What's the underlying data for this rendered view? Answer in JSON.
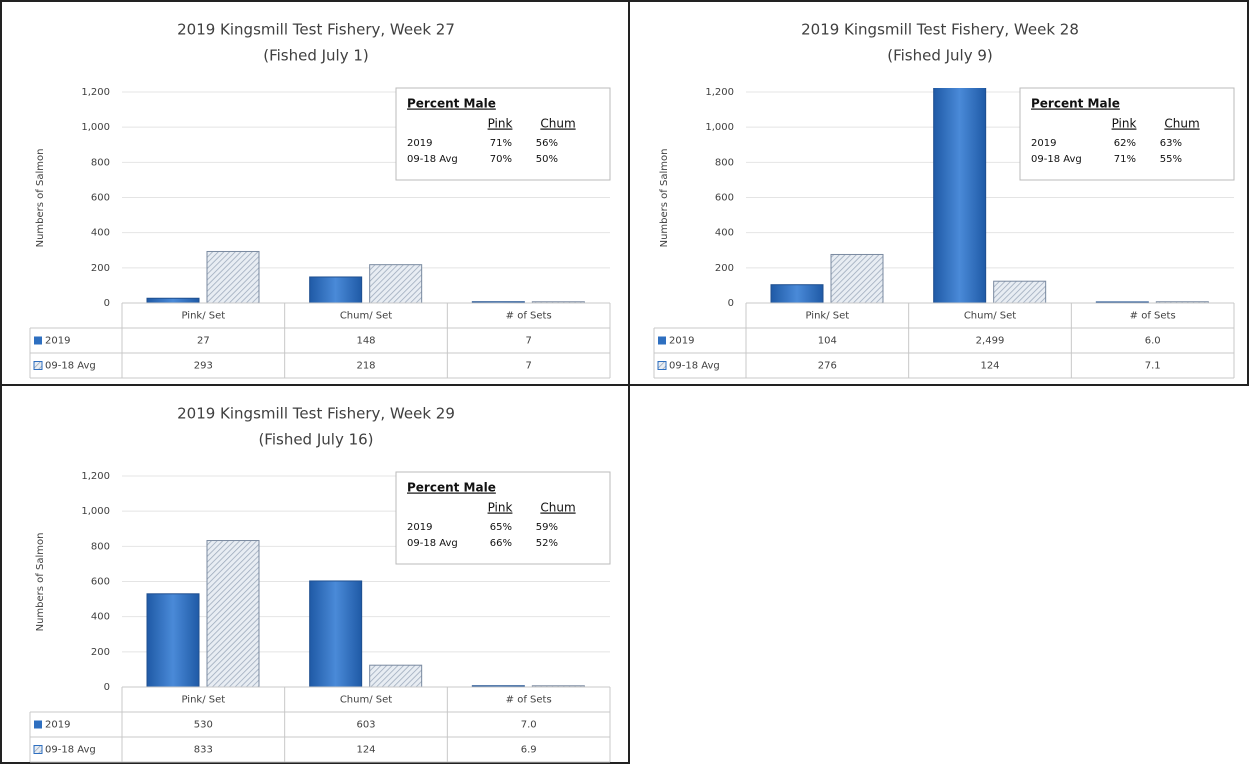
{
  "chart_data": [
    {
      "type": "bar",
      "title": "2019 Kingsmill Test Fishery, Week 27",
      "subtitle": "(Fished July 1)",
      "y_label": "Numbers of Salmon",
      "categories": [
        "Pink/ Set",
        "Chum/ Set",
        "# of Sets"
      ],
      "series": [
        {
          "name": "2019",
          "color": "#2e6fc0",
          "values": [
            27,
            148,
            7
          ]
        },
        {
          "name": "09-18 Avg",
          "color": "#c9d3e0",
          "values": [
            293,
            218,
            7
          ]
        }
      ],
      "ylim": [
        0,
        1200
      ],
      "yticks": [
        0,
        200,
        400,
        600,
        800,
        {
          "value": 1000,
          "label": "1,000"
        },
        {
          "value": 1200,
          "label": "1,200"
        }
      ],
      "grid": true,
      "inset": {
        "title": "Percent Male",
        "columns": [
          "Pink",
          "Chum"
        ],
        "rows": [
          {
            "label": "2019",
            "values": [
              "71%",
              "56%"
            ]
          },
          {
            "label": "09-18 Avg",
            "values": [
              "70%",
              "50%"
            ]
          }
        ]
      }
    },
    {
      "type": "bar",
      "title": "2019 Kingsmill Test Fishery, Week 28",
      "subtitle": "(Fished July 9)",
      "y_label": "Numbers of Salmon",
      "categories": [
        "Pink/ Set",
        "Chum/ Set",
        "# of Sets"
      ],
      "series": [
        {
          "name": "2019",
          "color": "#2e6fc0",
          "values": [
            104,
            2499,
            6.0
          ],
          "value_labels": [
            "104",
            "2,499",
            "6.0"
          ]
        },
        {
          "name": "09-18 Avg",
          "color": "#c9d3e0",
          "values": [
            276,
            124,
            7.1
          ]
        }
      ],
      "ylim": [
        0,
        1200
      ],
      "yticks": [
        0,
        200,
        400,
        600,
        800,
        {
          "value": 1000,
          "label": "1,000"
        },
        {
          "value": 1200,
          "label": "1,200"
        }
      ],
      "grid": true,
      "inset": {
        "title": "Percent Male",
        "columns": [
          "Pink",
          "Chum"
        ],
        "rows": [
          {
            "label": "2019",
            "values": [
              "62%",
              "63%"
            ]
          },
          {
            "label": "09-18 Avg",
            "values": [
              "71%",
              "55%"
            ]
          }
        ]
      }
    },
    {
      "type": "bar",
      "title": "2019 Kingsmill Test Fishery, Week 29",
      "subtitle": "(Fished July 16)",
      "y_label": "Numbers of Salmon",
      "categories": [
        "Pink/ Set",
        "Chum/ Set",
        "# of Sets"
      ],
      "series": [
        {
          "name": "2019",
          "color": "#2e6fc0",
          "values": [
            530,
            603,
            7.0
          ],
          "value_labels": [
            "530",
            "603",
            "7.0"
          ]
        },
        {
          "name": "09-18 Avg",
          "color": "#c9d3e0",
          "values": [
            833,
            124,
            6.9
          ]
        }
      ],
      "ylim": [
        0,
        1200
      ],
      "yticks": [
        0,
        200,
        400,
        600,
        800,
        {
          "value": 1000,
          "label": "1,000"
        },
        {
          "value": 1200,
          "label": "1,200"
        }
      ],
      "grid": true,
      "inset": {
        "title": "Percent Male",
        "columns": [
          "Pink",
          "Chum"
        ],
        "rows": [
          {
            "label": "2019",
            "values": [
              "65%",
              "59%"
            ]
          },
          {
            "label": "09-18 Avg",
            "values": [
              "66%",
              "52%"
            ]
          }
        ]
      }
    }
  ]
}
